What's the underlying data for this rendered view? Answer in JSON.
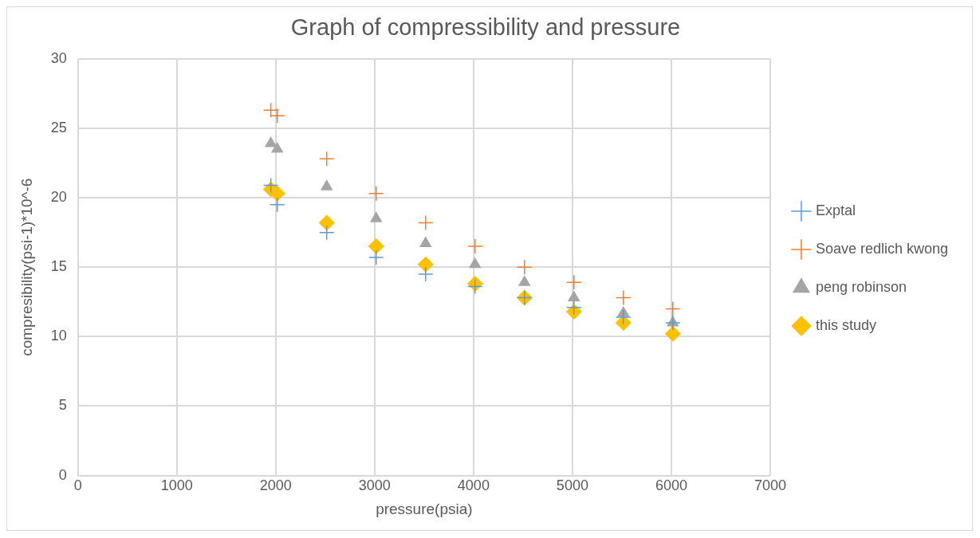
{
  "chart_data": {
    "type": "scatter",
    "title": "Graph of compressibility and pressure",
    "xlabel": "pressure(psia)",
    "ylabel": "compresibility(psi-1)*10^-6",
    "x": [
      1950,
      2015,
      2515,
      3015,
      3515,
      4015,
      4515,
      5015,
      5515,
      6015
    ],
    "series": [
      {
        "name": "Exptal",
        "color": "#5b9bd5",
        "marker": "cross",
        "values": [
          20.9,
          19.5,
          17.5,
          15.7,
          14.5,
          13.6,
          12.8,
          12.1,
          11.4,
          11.0
        ]
      },
      {
        "name": "Soave redlich kwong",
        "color": "#ed7d31",
        "marker": "cross",
        "values": [
          26.3,
          25.9,
          22.8,
          20.3,
          18.2,
          16.5,
          15.0,
          13.9,
          12.8,
          12.0
        ]
      },
      {
        "name": "peng robinson",
        "color": "#a5a5a5",
        "marker": "triangle",
        "values": [
          23.9,
          23.5,
          20.8,
          18.5,
          16.7,
          15.2,
          13.9,
          12.8,
          11.7,
          11.0
        ]
      },
      {
        "name": "this study",
        "color": "#ffc000",
        "marker": "diamond",
        "values": [
          20.6,
          20.3,
          18.2,
          16.5,
          15.2,
          13.8,
          12.8,
          11.8,
          11.0,
          10.2
        ]
      }
    ],
    "xlim": [
      0,
      7000
    ],
    "xticks": [
      0,
      1000,
      2000,
      3000,
      4000,
      5000,
      6000,
      7000
    ],
    "ylim": [
      0,
      30
    ],
    "yticks": [
      0,
      5,
      10,
      15,
      20,
      25,
      30
    ],
    "grid": true,
    "legend": "right"
  }
}
